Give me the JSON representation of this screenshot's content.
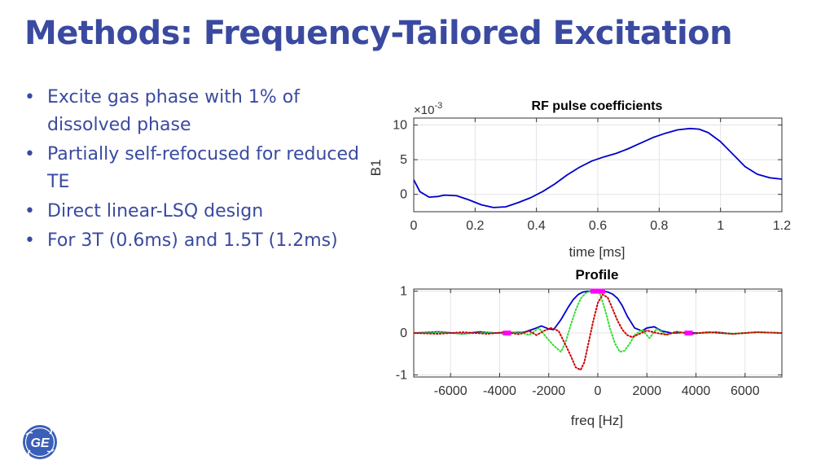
{
  "slide": {
    "title": "Methods: Frequency-Tailored Excitation",
    "bullet_glyph": "•",
    "bullets": [
      "Excite gas phase with 1% of dissolved phase",
      "Partially self-refocused for reduced TE",
      "Direct linear-LSQ design",
      "For 3T (0.6ms) and 1.5T (1.2ms)"
    ],
    "logo_icon": "ge-logo"
  },
  "chart_data": [
    {
      "type": "line",
      "title": "RF pulse coefficients",
      "xlabel": "time [ms]",
      "ylabel": "B1",
      "y_multiplier": "×10",
      "y_multiplier_exp": "-3",
      "xlim": [
        0,
        1.2
      ],
      "ylim": [
        -2.5,
        11
      ],
      "xticks": [
        0,
        0.2,
        0.4,
        0.6,
        0.8,
        1,
        1.2
      ],
      "xtick_labels": [
        "0",
        "0.2",
        "0.4",
        "0.6",
        "0.8",
        "1",
        "1.2"
      ],
      "yticks": [
        0,
        5,
        10
      ],
      "ytick_labels": [
        "0",
        "5",
        "10"
      ],
      "grid": true,
      "series": [
        {
          "color": "#0000cc",
          "style": "solid",
          "x": [
            0,
            0.02,
            0.05,
            0.08,
            0.1,
            0.14,
            0.18,
            0.22,
            0.26,
            0.3,
            0.34,
            0.38,
            0.42,
            0.46,
            0.5,
            0.54,
            0.58,
            0.62,
            0.66,
            0.7,
            0.74,
            0.78,
            0.82,
            0.86,
            0.9,
            0.93,
            0.96,
            1.0,
            1.04,
            1.08,
            1.12,
            1.16,
            1.2
          ],
          "y": [
            2.1,
            0.4,
            -0.4,
            -0.3,
            -0.1,
            -0.2,
            -0.8,
            -1.5,
            -1.9,
            -1.8,
            -1.2,
            -0.5,
            0.4,
            1.5,
            2.8,
            3.9,
            4.8,
            5.4,
            5.9,
            6.6,
            7.4,
            8.2,
            8.8,
            9.3,
            9.5,
            9.4,
            8.9,
            7.6,
            5.8,
            4.0,
            2.9,
            2.4,
            2.2
          ]
        }
      ]
    },
    {
      "type": "line",
      "title": "Profile",
      "xlabel": "freq [Hz]",
      "ylabel": "",
      "xlim": [
        -7500,
        7500
      ],
      "ylim": [
        -1.05,
        1.05
      ],
      "xticks": [
        -6000,
        -4000,
        -2000,
        0,
        2000,
        4000,
        6000
      ],
      "xtick_labels": [
        "-6000",
        "-4000",
        "-2000",
        "0",
        "2000",
        "4000",
        "6000"
      ],
      "yticks": [
        -1,
        0,
        1
      ],
      "ytick_labels": [
        "-1",
        "0",
        "1"
      ],
      "grid": true,
      "series": [
        {
          "color": "#0000cc",
          "style": "solid",
          "x": [
            -7500,
            -6500,
            -5500,
            -4800,
            -4200,
            -3600,
            -3000,
            -2600,
            -2300,
            -2000,
            -1800,
            -1500,
            -1200,
            -1000,
            -800,
            -600,
            -400,
            -200,
            0,
            200,
            400,
            600,
            800,
            1000,
            1200,
            1500,
            1800,
            2000,
            2300,
            2600,
            3000,
            3600,
            4200,
            4800,
            5500,
            6500,
            7500
          ],
          "y": [
            0.0,
            0.03,
            -0.02,
            0.03,
            0.0,
            0.01,
            0.02,
            0.1,
            0.17,
            0.1,
            0.08,
            0.32,
            0.62,
            0.8,
            0.92,
            0.98,
            1.0,
            1.0,
            1.0,
            1.0,
            0.98,
            0.93,
            0.83,
            0.65,
            0.4,
            0.12,
            0.05,
            0.12,
            0.15,
            0.05,
            0.0,
            0.01,
            0.0,
            0.02,
            -0.02,
            0.02,
            0.0
          ]
        },
        {
          "color": "#33dd33",
          "style": "dotted",
          "x": [
            -7500,
            -6500,
            -5500,
            -4500,
            -3800,
            -3200,
            -2800,
            -2400,
            -2100,
            -1800,
            -1500,
            -1300,
            -1100,
            -900,
            -700,
            -500,
            -300,
            -100,
            0,
            100,
            300,
            500,
            700,
            900,
            1100,
            1300,
            1500,
            1800,
            2100,
            2400,
            2800,
            3200,
            3800,
            4500,
            5500,
            6500,
            7500
          ],
          "y": [
            0.0,
            0.02,
            -0.02,
            0.02,
            -0.02,
            0.03,
            -0.05,
            0.12,
            -0.1,
            -0.3,
            -0.45,
            -0.2,
            0.2,
            0.55,
            0.82,
            0.95,
            1.0,
            1.0,
            0.98,
            0.92,
            0.55,
            0.1,
            -0.25,
            -0.45,
            -0.42,
            -0.25,
            -0.05,
            0.08,
            -0.12,
            0.1,
            -0.04,
            0.03,
            -0.02,
            0.02,
            -0.02,
            0.02,
            0.0
          ]
        },
        {
          "color": "#cc0000",
          "style": "dotted",
          "x": [
            -7500,
            -6500,
            -5500,
            -4500,
            -3800,
            -3200,
            -2800,
            -2500,
            -2200,
            -1900,
            -1600,
            -1300,
            -1100,
            -900,
            -700,
            -550,
            -400,
            -200,
            0,
            200,
            400,
            600,
            800,
            1000,
            1200,
            1400,
            1700,
            2000,
            2400,
            2800,
            3200,
            3800,
            4500,
            5500,
            6500,
            7500
          ],
          "y": [
            0.0,
            -0.02,
            0.02,
            -0.02,
            0.02,
            -0.03,
            0.05,
            -0.05,
            0.05,
            0.12,
            0.05,
            -0.3,
            -0.55,
            -0.82,
            -0.88,
            -0.7,
            -0.3,
            0.25,
            0.72,
            0.92,
            0.85,
            0.58,
            0.3,
            0.08,
            -0.05,
            -0.1,
            -0.02,
            0.06,
            0.0,
            -0.04,
            0.03,
            -0.02,
            0.02,
            -0.02,
            0.02,
            0.0
          ]
        }
      ],
      "markers": {
        "color": "#ff00ff",
        "points": [
          {
            "x": -3700,
            "y": 0
          },
          {
            "x": 0,
            "y": 1
          },
          {
            "x": 3700,
            "y": 0
          }
        ]
      }
    }
  ]
}
